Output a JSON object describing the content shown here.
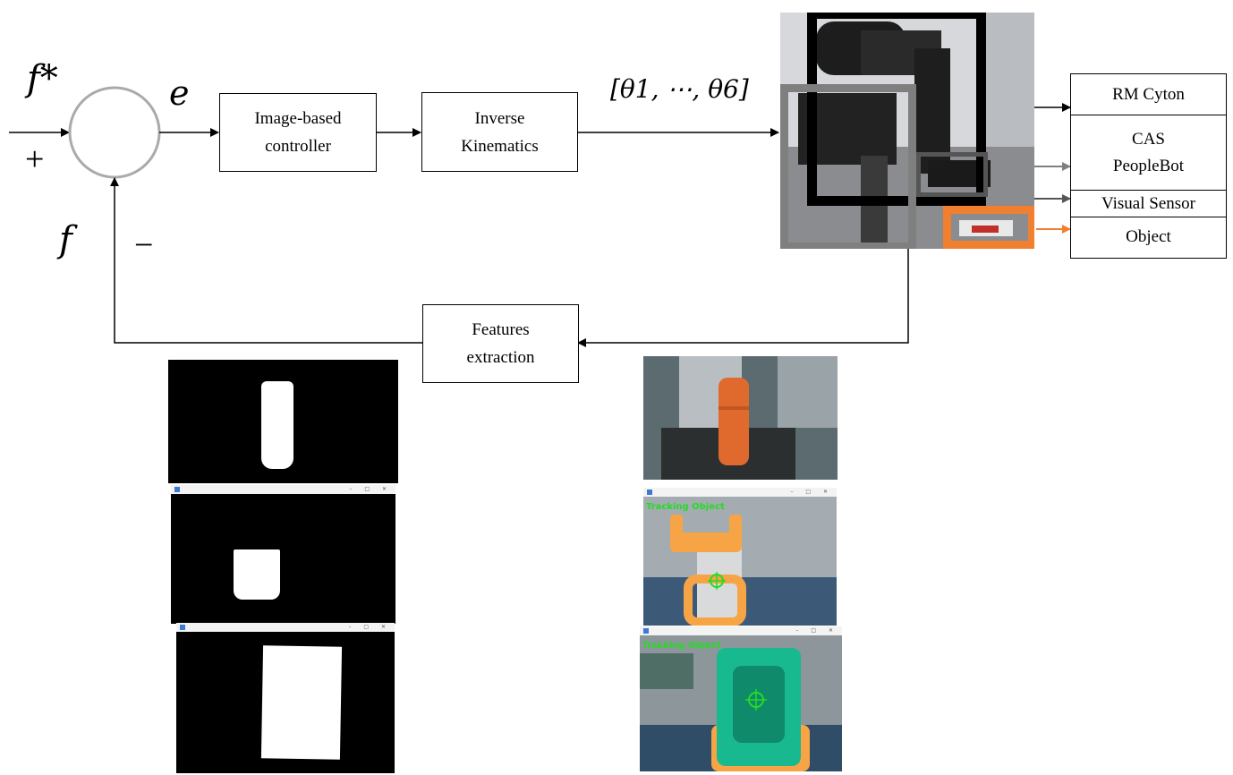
{
  "diagram": {
    "inputs": {
      "reference_label": "f*",
      "feedback_label": "f",
      "plus_sign": "+",
      "minus_sign": "−",
      "error_label": "e"
    },
    "blocks": {
      "controller": "Image-based controller",
      "inverse_kinematics": "Inverse Kinematics",
      "features_extraction": "Features extraction"
    },
    "joint_vector_label": "[θ1, ⋯, θ6]",
    "legend": [
      {
        "label": "RM Cyton",
        "color": "#000000"
      },
      {
        "label": "CAS PeopleBot",
        "color": "#7f7f7f"
      },
      {
        "label": "Visual Sensor",
        "color": "#555555"
      },
      {
        "label": "Object",
        "color": "#f08030"
      }
    ],
    "overlay_text": "Tracking Object",
    "colors": {
      "object_orange": "#f08030",
      "object_green": "#19b98f",
      "tracking_green": "#22dd22"
    }
  }
}
